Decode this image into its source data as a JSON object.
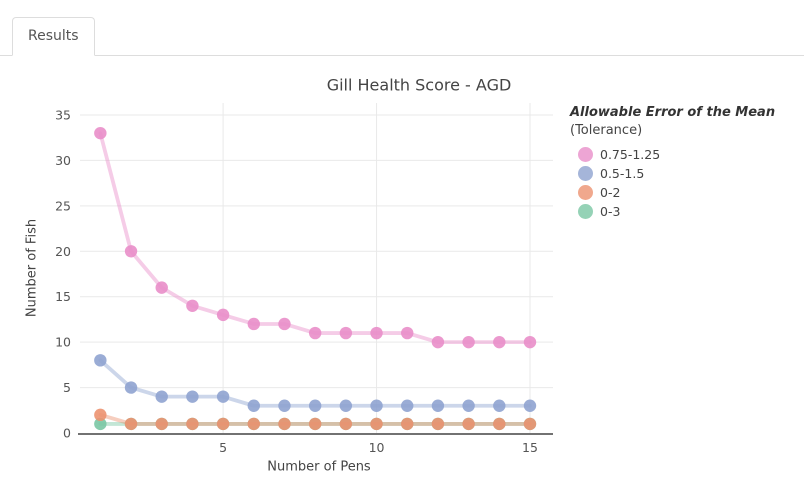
{
  "tab_bar": {
    "tabs": [
      {
        "label": "Results",
        "active": true
      }
    ]
  },
  "chart_data": {
    "type": "line",
    "title": "Gill Health Score - AGD",
    "xlabel": "Number of Pens",
    "ylabel": "Number of Fish",
    "x": [
      1,
      2,
      3,
      4,
      5,
      6,
      7,
      8,
      9,
      10,
      11,
      12,
      13,
      14,
      15
    ],
    "series": [
      {
        "name": "0.75-1.25",
        "color": "#e98ec9",
        "values": [
          33,
          20,
          16,
          14,
          13,
          12,
          12,
          11,
          11,
          11,
          11,
          10,
          10,
          10,
          10
        ]
      },
      {
        "name": "0.5-1.5",
        "color": "#8fa3d0",
        "values": [
          8,
          5,
          4,
          4,
          4,
          3,
          3,
          3,
          3,
          3,
          3,
          3,
          3,
          3,
          3
        ]
      },
      {
        "name": "0-2",
        "color": "#ec9270",
        "values": [
          2,
          1,
          1,
          1,
          1,
          1,
          1,
          1,
          1,
          1,
          1,
          1,
          1,
          1,
          1
        ]
      },
      {
        "name": "0-3",
        "color": "#7ac7a4",
        "values": [
          1,
          1,
          1,
          1,
          1,
          1,
          1,
          1,
          1,
          1,
          1,
          1,
          1,
          1,
          1
        ]
      }
    ],
    "legend": {
      "title": "Allowable Error of the Mean",
      "subtitle": "(Tolerance)",
      "position": "right"
    },
    "axes": {
      "xticks": [
        5,
        10,
        15
      ],
      "yticks": [
        0,
        5,
        10,
        15,
        20,
        25,
        30,
        35
      ],
      "xlim": [
        0.5,
        15.75
      ],
      "ylim": [
        0,
        35
      ],
      "grid": true
    }
  },
  "style": {
    "grid_color": "#e9e9e9",
    "axis_line_color": "#444444",
    "line_opacity": 0.45,
    "marker_opacity": 0.9
  }
}
